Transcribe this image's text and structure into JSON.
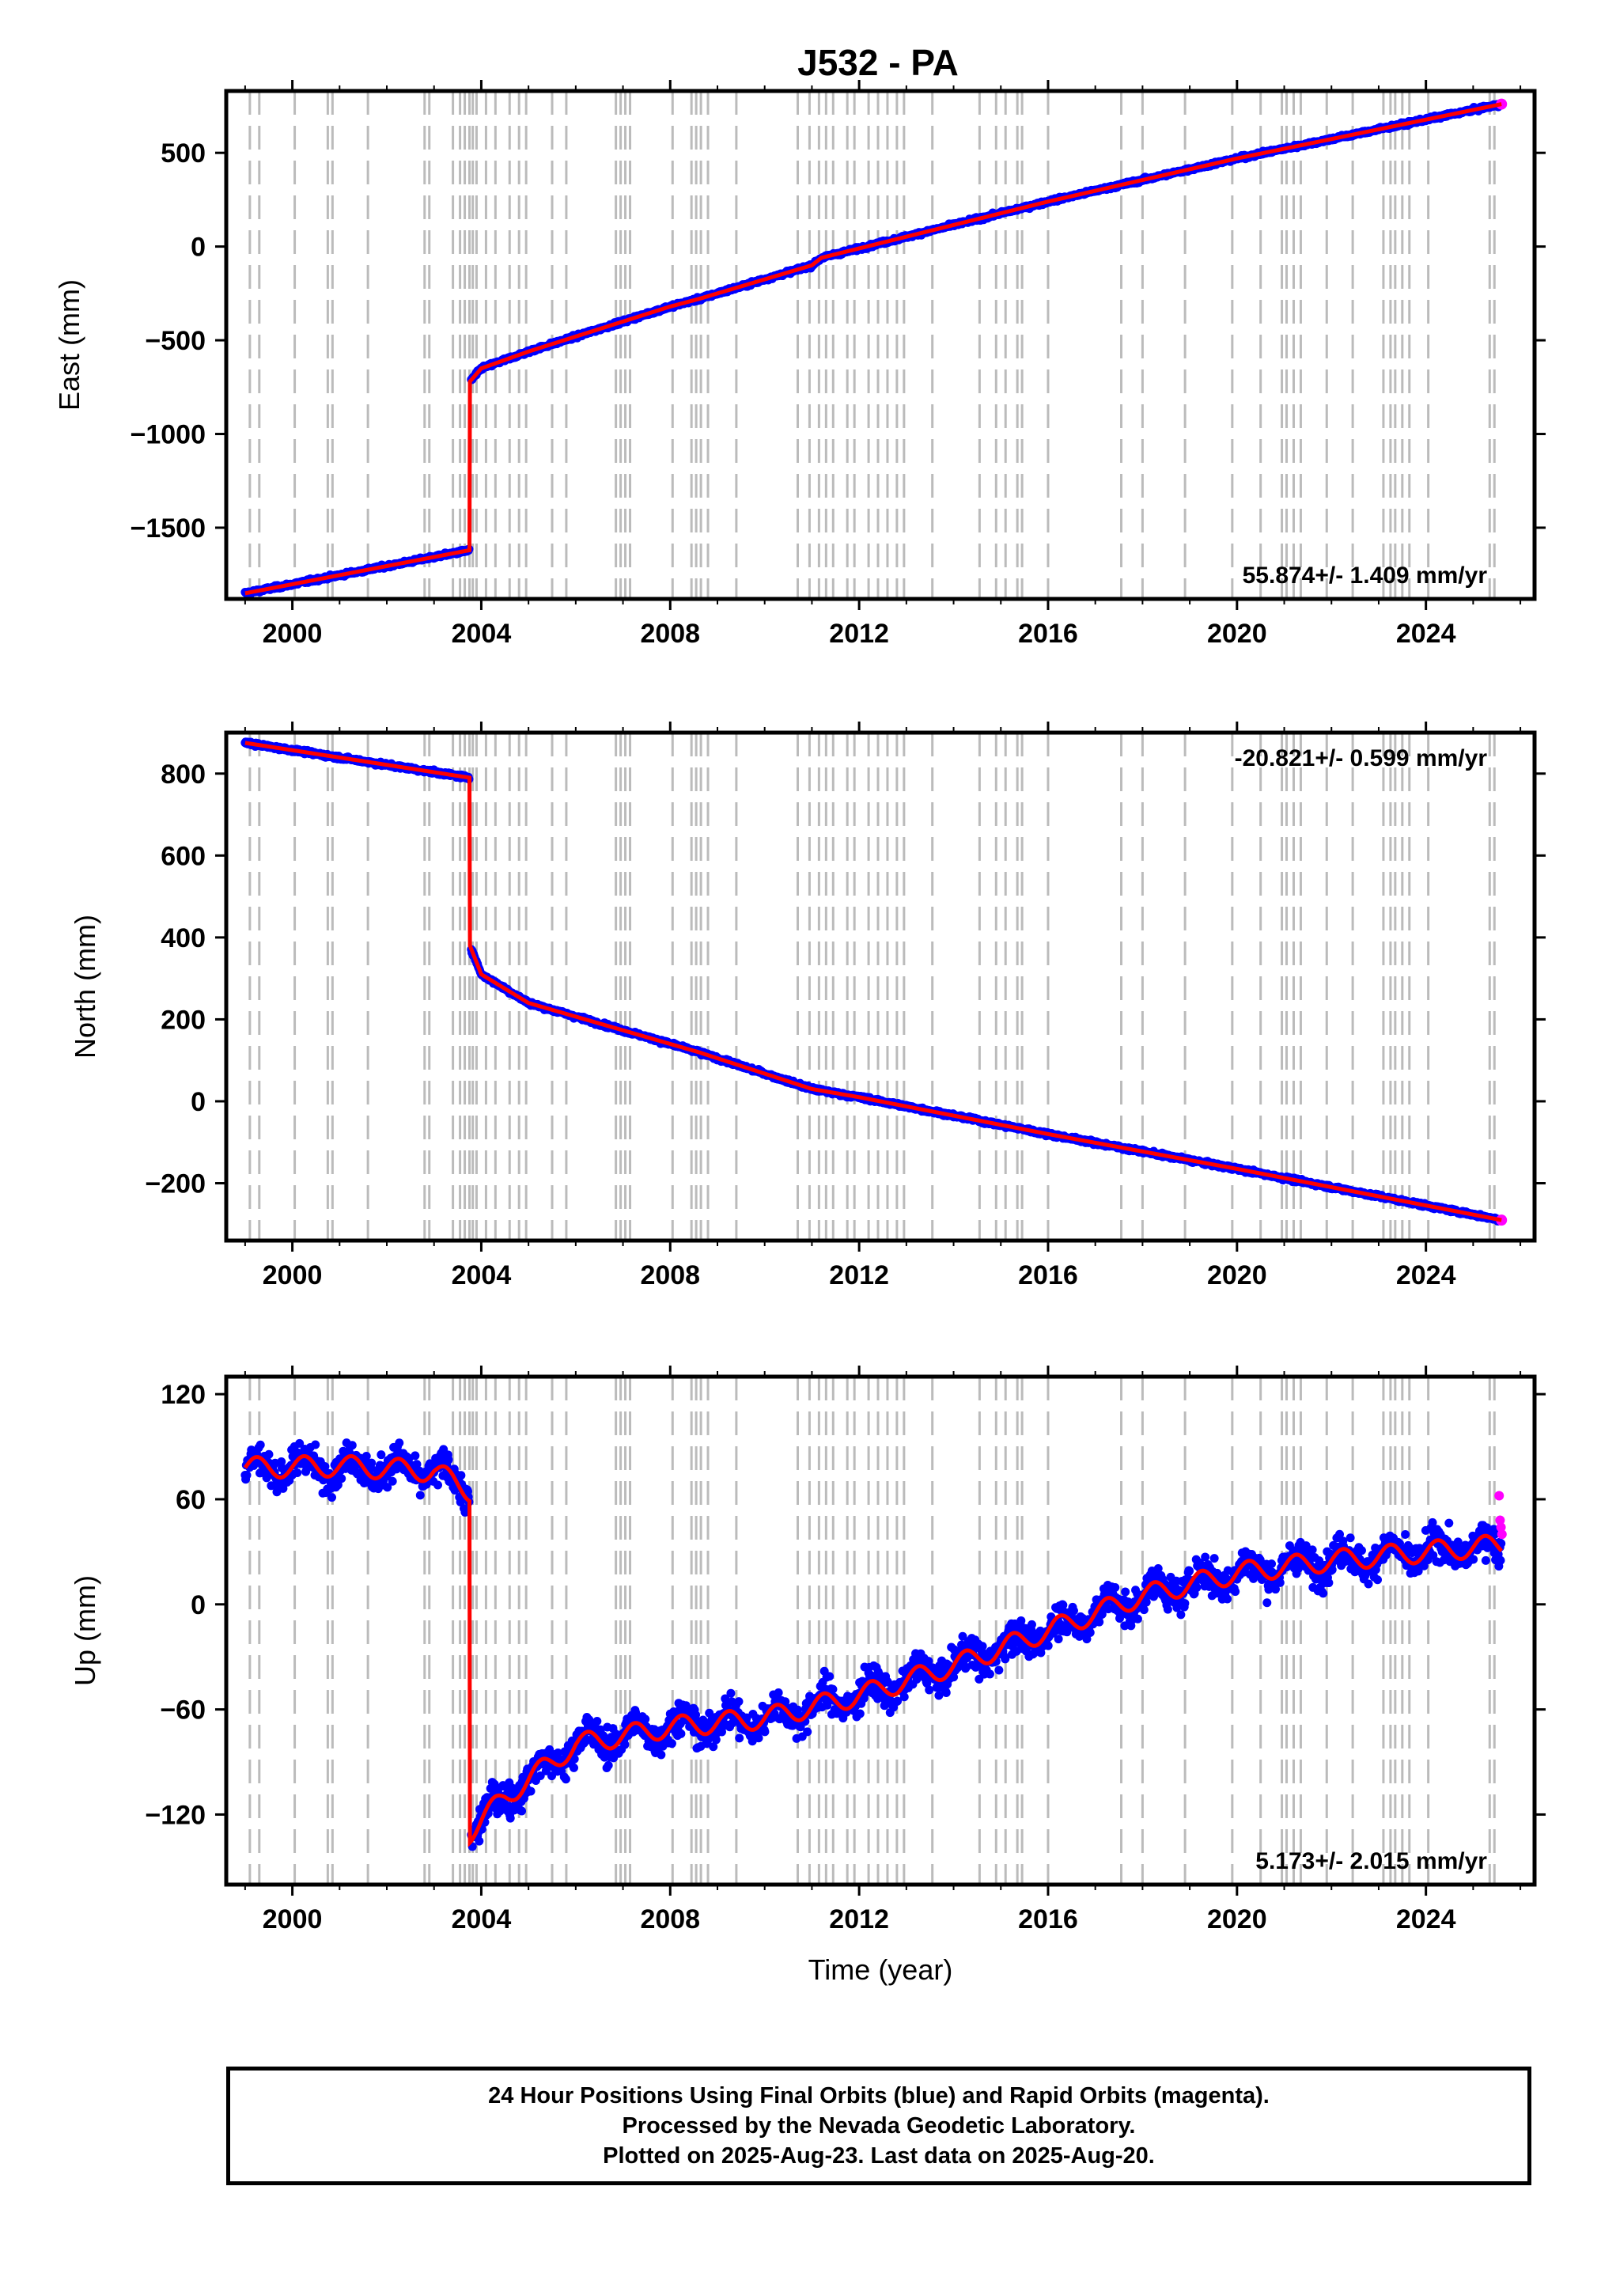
{
  "title": "J532 - PA",
  "colors": {
    "final_orbits": "#0000ff",
    "rapid_orbits": "#ff00ff",
    "model": "#ff0000",
    "offset_lines": "#bbbbbb",
    "axis": "#000000"
  },
  "chart_data": [
    {
      "type": "scatter",
      "ylabel": "East (mm)",
      "xlabel": "",
      "xlim": [
        1998.6,
        2026.3
      ],
      "ylim": [
        -1880,
        830
      ],
      "x_ticks": [
        2000,
        2004,
        2008,
        2012,
        2016,
        2020,
        2024
      ],
      "y_ticks": [
        -1500,
        -1000,
        -500,
        0,
        500
      ],
      "y_tick_labels": [
        "−1500",
        "−1000",
        "−500",
        "0",
        "500"
      ],
      "rate_label": "55.874+/- 1.409 mm/yr",
      "rate_position": "bottom-right",
      "trend": {
        "x": [
          1999.0,
          2003.75,
          2003.76,
          2004.0,
          2005.0,
          2008.0,
          2008.6,
          2011.0,
          2011.2,
          2016.0,
          2020.0,
          2025.6
        ],
        "y": [
          -1850,
          -1620,
          -720,
          -650,
          -560,
          -320,
          -280,
          -100,
          -60,
          240,
          470,
          760
        ]
      },
      "noise_mm": 10,
      "series": [
        {
          "name": "Final Orbits",
          "color": "#0000ff"
        },
        {
          "name": "Rapid Orbits",
          "color": "#ff00ff"
        }
      ]
    },
    {
      "type": "scatter",
      "ylabel": "North (mm)",
      "xlabel": "",
      "xlim": [
        1998.6,
        2026.3
      ],
      "ylim": [
        -340,
        900
      ],
      "x_ticks": [
        2000,
        2004,
        2008,
        2012,
        2016,
        2020,
        2024
      ],
      "y_ticks": [
        -200,
        0,
        200,
        400,
        600,
        800
      ],
      "y_tick_labels": [
        "−200",
        "0",
        "200",
        "400",
        "600",
        "800"
      ],
      "rate_label": "-20.821+/- 0.599 mm/yr",
      "rate_position": "top-right",
      "trend": {
        "x": [
          1999.0,
          2003.75,
          2003.76,
          2004.0,
          2005.0,
          2008.0,
          2008.6,
          2011.0,
          2012.0,
          2016.0,
          2020.0,
          2025.6
        ],
        "y": [
          875,
          790,
          380,
          310,
          240,
          140,
          120,
          30,
          10,
          -80,
          -165,
          -290
        ]
      },
      "noise_mm": 5,
      "series": [
        {
          "name": "Final Orbits",
          "color": "#0000ff"
        },
        {
          "name": "Rapid Orbits",
          "color": "#ff00ff"
        }
      ]
    },
    {
      "type": "scatter",
      "ylabel": "Up (mm)",
      "xlabel": "Time (year)",
      "xlim": [
        1998.6,
        2026.3
      ],
      "ylim": [
        -160,
        130
      ],
      "x_ticks": [
        2000,
        2004,
        2008,
        2012,
        2016,
        2020,
        2024
      ],
      "y_ticks": [
        -120,
        -60,
        0,
        60,
        120
      ],
      "y_tick_labels": [
        "−120",
        "−60",
        "0",
        "60",
        "120"
      ],
      "rate_label": "5.173+/- 2.015 mm/yr",
      "rate_position": "bottom-right",
      "trend": {
        "x": [
          1999.0,
          2001.0,
          2003.0,
          2003.75,
          2003.76,
          2004.5,
          2006.0,
          2008.0,
          2010.0,
          2012.0,
          2014.0,
          2016.0,
          2018.0,
          2020.0,
          2022.0,
          2024.0,
          2025.6
        ],
        "y": [
          78,
          79,
          76,
          65,
          -130,
          -110,
          -80,
          -70,
          -65,
          -52,
          -35,
          -15,
          5,
          18,
          25,
          30,
          34
        ]
      },
      "seasonal_amplitude_mm": 6,
      "noise_mm": 11,
      "rapid_points": {
        "x": [
          2025.55,
          2025.57,
          2025.59,
          2025.61
        ],
        "y": [
          62,
          48,
          44,
          40
        ]
      },
      "series": [
        {
          "name": "Final Orbits",
          "color": "#0000ff"
        },
        {
          "name": "Rapid Orbits",
          "color": "#ff00ff"
        }
      ]
    }
  ],
  "offset_epochs": [
    1999.1,
    1999.3,
    2000.05,
    2000.75,
    2000.85,
    2001.6,
    2002.8,
    2002.9,
    2003.4,
    2003.55,
    2003.65,
    2003.75,
    2003.82,
    2003.9,
    2004.1,
    2004.3,
    2004.6,
    2004.8,
    2004.95,
    2005.5,
    2005.8,
    2006.85,
    2006.95,
    2007.05,
    2007.15,
    2008.05,
    2008.45,
    2008.55,
    2008.65,
    2008.8,
    2009.4,
    2010.7,
    2010.95,
    2011.15,
    2011.3,
    2011.45,
    2011.75,
    2011.9,
    2012.2,
    2012.4,
    2012.6,
    2012.8,
    2012.95,
    2013.55,
    2014.55,
    2014.9,
    2015.1,
    2015.35,
    2015.45,
    2016.0,
    2017.55,
    2018.0,
    2018.9,
    2019.9,
    2020.5,
    2020.95,
    2021.05,
    2021.2,
    2021.35,
    2021.9,
    2022.45,
    2023.1,
    2023.25,
    2023.35,
    2023.5,
    2023.65,
    2024.05,
    2025.35,
    2025.45
  ],
  "legend": {
    "line1": "24 Hour Positions Using Final Orbits (blue) and Rapid Orbits (magenta).",
    "line2": "Processed by the Nevada Geodetic Laboratory.",
    "line3": "Plotted on 2025-Aug-23. Last data on 2025-Aug-20."
  }
}
